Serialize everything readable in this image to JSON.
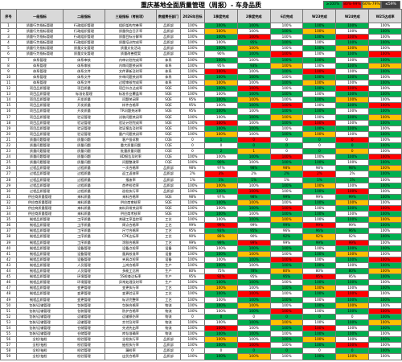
{
  "title": "重庆基地全面质量管理（周报）- 车身品质",
  "legend": [
    "≥100%",
    "80%-99%",
    "60%-79%",
    "≤59%"
  ],
  "columns": [
    "序号",
    "一级指标",
    "二级指标",
    "三级指标（考核项）",
    "数据责任部门",
    "2026年目标",
    "1季度完成",
    "2季度完成",
    "6月完成",
    "W23完成",
    "W24完成",
    "W25达成率"
  ],
  "rows": [
    [
      "1",
      "质量行为指标管理",
      "行政组织管理",
      "组织架构完善率",
      "品质部",
      "100%",
      "100%",
      "100%",
      "100%",
      "100%",
      "100%",
      "100%"
    ],
    [
      "2",
      "质量行为指标管理",
      "行政组织管理",
      "质量例会召开率",
      "品质部",
      "100%",
      "100%",
      "100%",
      "100%",
      "100%",
      "100%",
      "100%"
    ],
    [
      "3",
      "质量行为指标管理",
      "行政组织管理",
      "质量目标分解率",
      "品质部",
      "100%",
      "100%",
      "100%",
      "100%",
      "100%",
      "100%",
      "100%"
    ],
    [
      "4",
      "质量行为指标管理",
      "行政组织管理",
      "质量培训完成率",
      "品质部",
      "100%",
      "100%",
      "95%",
      "100%",
      "100%",
      "100%",
      "100%"
    ],
    [
      "5",
      "质量行为指标管理",
      "质量文化管理",
      "质量文化活动",
      "品质部",
      "100%",
      "100%",
      "100%",
      "100%",
      "100%",
      "100%",
      "100%"
    ],
    [
      "6",
      "质量行为指标管理",
      "质量文化管理",
      "质量改善提案",
      "品质部",
      "100%",
      "90%",
      "100%",
      "100%",
      "100%",
      "100%",
      "100%"
    ],
    [
      "7",
      "体系管理",
      "体系审核",
      "内审计划完成率",
      "体系",
      "100%",
      "100%",
      "100%",
      "100%",
      "100%",
      "100%",
      "100%"
    ],
    [
      "8",
      "体系管理",
      "体系审核",
      "内审问题关闭率",
      "体系",
      "100%",
      "95%",
      "93%",
      "100%",
      "100%",
      "100%",
      "100%"
    ],
    [
      "9",
      "体系管理",
      "体系文件",
      "文件更新及时率",
      "体系",
      "100%",
      "100%",
      "100%",
      "100%",
      "100%",
      "100%",
      "100%"
    ],
    [
      "10",
      "体系管理",
      "体系文件",
      "外审问题关闭率",
      "体系",
      "100%",
      "100%",
      "100%",
      "100%",
      "100%",
      "100%",
      "100%"
    ],
    [
      "11",
      "体系管理",
      "体系文件",
      "过程审核完成率",
      "体系",
      "100%",
      "100%",
      "100%",
      "100%",
      "100%",
      "100%",
      "100%"
    ],
    [
      "12",
      "项目品质管理",
      "项目质量",
      "项目节点达成率",
      "SQE",
      "100%",
      "100%",
      "100%",
      "100%",
      "100%",
      "100%",
      "100%"
    ],
    [
      "13",
      "项目品质管理",
      "标准化管理",
      "标准作业覆盖率",
      "SQE",
      "100%",
      "100%",
      "100%",
      "100%",
      "100%",
      "100%",
      "100%"
    ],
    [
      "14",
      "项目品质管理",
      "开发质量",
      "问题关闭率",
      "SQE",
      "95%",
      "100%",
      "100%",
      "100%",
      "100%",
      "100%",
      "100%"
    ],
    [
      "15",
      "项目品质管理",
      "开发质量",
      "样件合格率",
      "SQE",
      "95%",
      "100%",
      "100%",
      "100%",
      "100%",
      "100%",
      "100%"
    ],
    [
      "16",
      "项目品质管理",
      "开发质量",
      "TR问题关闭率",
      "SQE",
      "95%",
      "100%",
      "100%",
      "100%",
      "100%",
      "100%",
      "100%"
    ],
    [
      "17",
      "项目品质管理",
      "验证管理",
      "试装问题关闭率",
      "SQE",
      "100%",
      "100%",
      "100%",
      "100%",
      "100%",
      "100%",
      "100%"
    ],
    [
      "18",
      "项目品质管理",
      "验证管理",
      "验证计划完成率",
      "SQE",
      "100%",
      "100%",
      "100%",
      "100%",
      "100%",
      "100%",
      "100%"
    ],
    [
      "19",
      "项目品质管理",
      "验证管理",
      "验证报告及时率",
      "SQE",
      "100%",
      "100%",
      "100%",
      "100%",
      "100%",
      "100%",
      "100%"
    ],
    [
      "20",
      "项目品质管理",
      "验证管理",
      "量产问题关闭率",
      "SQE",
      "100%",
      "100%",
      "100%",
      "100%",
      "100%",
      "100%",
      "100%"
    ],
    [
      "21",
      "质量问题管理",
      "质量问题",
      "客户投诉数",
      "CQE",
      "0",
      "1",
      "0",
      "0",
      "0",
      "0",
      "100%"
    ],
    [
      "22",
      "质量问题管理",
      "质量问题",
      "重大质量问题",
      "CQE",
      "0",
      "0",
      "0",
      "0",
      "0",
      "0",
      "100%"
    ],
    [
      "23",
      "质量问题管理",
      "质量问题",
      "批量质量问题",
      "CQE",
      "0",
      "2",
      "1",
      "0",
      "0",
      "0",
      "100%"
    ],
    [
      "24",
      "质量问题管理",
      "质量问题",
      "8D报告及时率",
      "CQE",
      "100%",
      "100%",
      "100%",
      "100%",
      "100%",
      "100%",
      "100%"
    ],
    [
      "25",
      "质量问题管理",
      "质量问题",
      "问题整改率",
      "CQE",
      "100%",
      "90%",
      "100%",
      "100%",
      "100%",
      "100%",
      "100%"
    ],
    [
      "26",
      "过程品质管理",
      "过程质量",
      "一次合格率",
      "品质部",
      "98%",
      "97%",
      "98%",
      "98%",
      "98%",
      "98%",
      "100%"
    ],
    [
      "27",
      "过程品质管理",
      "过程质量",
      "返工返修率",
      "品质部",
      "2%",
      "3%",
      "2%",
      "2%",
      "2%",
      "2%",
      "100%"
    ],
    [
      "28",
      "过程品质管理",
      "过程质量",
      "报废率",
      "品质部",
      "1%",
      "1%",
      "1%",
      "1%",
      "1%",
      "1%",
      "100%"
    ],
    [
      "29",
      "过程品质管理",
      "过程质量",
      "首件检验率",
      "品质部",
      "100%",
      "100%",
      "100%",
      "100%",
      "100%",
      "100%",
      "100%"
    ],
    [
      "30",
      "过程品质管理",
      "过程质量",
      "巡检执行率",
      "品质部",
      "100%",
      "100%",
      "100%",
      "100%",
      "100%",
      "100%",
      "100%"
    ],
    [
      "31",
      "供应商质量管理",
      "来料质量",
      "来料合格率",
      "SQE",
      "98%",
      "97%",
      "98%",
      "99%",
      "99%",
      "99%",
      "100%"
    ],
    [
      "32",
      "供应商质量管理",
      "来料质量",
      "供应商审核率",
      "SQE",
      "100%",
      "100%",
      "100%",
      "100%",
      "100%",
      "100%",
      "100%"
    ],
    [
      "33",
      "供应商质量管理",
      "来料质量",
      "来料异常关闭率",
      "SQE",
      "100%",
      "100%",
      "100%",
      "100%",
      "100%",
      "100%",
      "100%"
    ],
    [
      "34",
      "供应商质量管理",
      "来料质量",
      "供应商考核率",
      "SQE",
      "100%",
      "100%",
      "100%",
      "100%",
      "100%",
      "100%",
      "100%"
    ],
    [
      "35",
      "制程品质管理",
      "工序质量",
      "关键工序监控率",
      "工艺",
      "100%",
      "100%",
      "100%",
      "100%",
      "100%",
      "100%",
      "100%"
    ],
    [
      "36",
      "制程品质管理",
      "工序质量",
      "焊点合格率",
      "工艺",
      "99%",
      "99%",
      "99%",
      "99%",
      "99%",
      "99%",
      "100%"
    ],
    [
      "37",
      "制程品质管理",
      "工序质量",
      "尺寸合格率",
      "工艺",
      "95%",
      "93%",
      "95%",
      "96%",
      "96%",
      "96%",
      "100%"
    ],
    [
      "38",
      "制程品质管理",
      "工序质量",
      "CPK达标率",
      "工艺",
      "90%",
      "88%",
      "90%",
      "92%",
      "92%",
      "92%",
      "100%"
    ],
    [
      "39",
      "制程品质管理",
      "工序质量",
      "涂胶合格率",
      "工艺",
      "99%",
      "99%",
      "99%",
      "99%",
      "99%",
      "99%",
      "100%"
    ],
    [
      "40",
      "制程品质管理",
      "设备管理",
      "设备点检率",
      "设备",
      "100%",
      "100%",
      "100%",
      "100%",
      "100%",
      "100%",
      "100%"
    ],
    [
      "41",
      "制程品质管理",
      "设备管理",
      "量具校准率",
      "设备",
      "100%",
      "100%",
      "100%",
      "100%",
      "100%",
      "100%",
      "100%"
    ],
    [
      "42",
      "制程品质管理",
      "设备管理",
      "夹具点检率",
      "设备",
      "100%",
      "100%",
      "100%",
      "100%",
      "100%",
      "100%",
      "100%"
    ],
    [
      "43",
      "制程品质管理",
      "人员管理",
      "上岗合格率",
      "生产",
      "100%",
      "100%",
      "100%",
      "100%",
      "100%",
      "100%",
      "100%"
    ],
    [
      "44",
      "制程品质管理",
      "人员管理",
      "多能工比例",
      "生产",
      "80%",
      "75%",
      "78%",
      "80%",
      "80%",
      "80%",
      "100%"
    ],
    [
      "45",
      "制程品质管理",
      "环境管理",
      "5S检查达标率",
      "生产",
      "95%",
      "92%",
      "95%",
      "95%",
      "95%",
      "95%",
      "100%"
    ],
    [
      "46",
      "制程品质管理",
      "环境管理",
      "异常处理及时率",
      "生产",
      "100%",
      "100%",
      "100%",
      "100%",
      "100%",
      "100%",
      "100%"
    ],
    [
      "47",
      "制程品质管理",
      "变更管理",
      "变更执行率",
      "工艺",
      "100%",
      "100%",
      "100%",
      "100%",
      "100%",
      "100%",
      "100%"
    ],
    [
      "48",
      "制程品质管理",
      "变更管理",
      "变更验证率",
      "工艺",
      "100%",
      "100%",
      "100%",
      "100%",
      "100%",
      "100%",
      "100%"
    ],
    [
      "49",
      "制程品质管理",
      "变更管理",
      "标识完整率",
      "工艺",
      "100%",
      "100%",
      "100%",
      "100%",
      "100%",
      "100%",
      "100%"
    ],
    [
      "50",
      "包装/运输管理",
      "包装管理",
      "包装合格率",
      "物流",
      "100%",
      "100%",
      "100%",
      "100%",
      "100%",
      "100%",
      "100%"
    ],
    [
      "51",
      "包装/运输管理",
      "包装管理",
      "防护合格率",
      "物流",
      "100%",
      "100%",
      "100%",
      "100%",
      "100%",
      "100%",
      "100%"
    ],
    [
      "52",
      "包装/运输管理",
      "运输管理",
      "运输损伤率",
      "物流",
      "0",
      "0",
      "0",
      "0",
      "0",
      "0",
      "100%"
    ],
    [
      "53",
      "包装/运输管理",
      "运输管理",
      "交付及时率",
      "物流",
      "100%",
      "100%",
      "100%",
      "100%",
      "100%",
      "100%",
      "100%"
    ],
    [
      "54",
      "包装/运输管理",
      "仓储管理",
      "先进先出率",
      "物流",
      "100%",
      "100%",
      "100%",
      "100%",
      "100%",
      "100%",
      "100%"
    ],
    [
      "55",
      "包装/运输管理",
      "仓储管理",
      "库存准确率",
      "物流",
      "100%",
      "100%",
      "100%",
      "100%",
      "100%",
      "100%",
      "100%"
    ],
    [
      "56",
      "全检/抽检",
      "检验管理",
      "全检执行率",
      "品质部",
      "100%",
      "100%",
      "100%",
      "100%",
      "100%",
      "100%",
      "100%"
    ],
    [
      "57",
      "全检/抽检",
      "检验管理",
      "抽检执行率",
      "品质部",
      "100%",
      "100%",
      "100%",
      "100%",
      "100%",
      "100%",
      "100%"
    ],
    [
      "58",
      "全检/抽检",
      "检验管理",
      "漏检率",
      "品质部",
      "0",
      "0",
      "0",
      "0",
      "0",
      "0",
      "100%"
    ],
    [
      "59",
      "全检/抽检",
      "检验管理",
      "出货合格率",
      "品质部",
      "100%",
      "100%",
      "100%",
      "100%",
      "100%",
      "100%",
      "100%"
    ]
  ]
}
